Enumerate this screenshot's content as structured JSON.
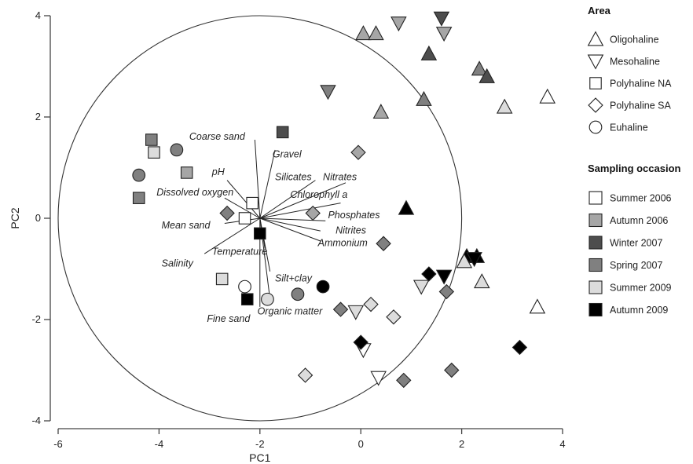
{
  "chart_data": {
    "type": "scatter",
    "title": "",
    "xlabel": "PC1",
    "ylabel": "PC2",
    "xlim": [
      -6,
      4
    ],
    "ylim": [
      -4,
      4
    ],
    "xticks": [
      "-6",
      "-4",
      "-2",
      "0",
      "2",
      "4"
    ],
    "yticks": [
      "-4",
      "-2",
      "0",
      "2",
      "4"
    ],
    "grid": false,
    "correlation_circle": {
      "center": [
        -2.0,
        0.0
      ],
      "radius": 4.0
    },
    "colors": {
      "Summer 2006": "#ffffff",
      "Autumn 2006": "#a6a6a6",
      "Winter 2007": "#4d4d4d",
      "Spring 2007": "#808080",
      "Summer 2009": "#dcdcdc",
      "Autumn 2009": "#000000"
    },
    "vectors": [
      {
        "label": "Coarse sand",
        "x": -2.1,
        "y": 1.55
      },
      {
        "label": "Gravel",
        "x": -1.7,
        "y": 1.35
      },
      {
        "label": "pH",
        "x": -2.65,
        "y": 0.75
      },
      {
        "label": "Dissolved oxygen",
        "x": -2.7,
        "y": 0.4
      },
      {
        "label": "Silicates",
        "x": -0.9,
        "y": 0.75
      },
      {
        "label": "Nitrates",
        "x": -0.3,
        "y": 0.7
      },
      {
        "label": "Chlorophyll a",
        "x": -0.4,
        "y": 0.3
      },
      {
        "label": "Phosphates",
        "x": -0.7,
        "y": -0.05
      },
      {
        "label": "Nitrites",
        "x": -0.8,
        "y": -0.25
      },
      {
        "label": "Ammonium",
        "x": -0.8,
        "y": -0.45
      },
      {
        "label": "Mean sand",
        "x": -2.7,
        "y": -0.1
      },
      {
        "label": "Temperature",
        "x": -1.9,
        "y": -0.6
      },
      {
        "label": "Salinity",
        "x": -3.1,
        "y": -0.7
      },
      {
        "label": "Silt+clay",
        "x": -1.8,
        "y": -1.05
      },
      {
        "label": "Organic matter",
        "x": -1.8,
        "y": -1.6
      },
      {
        "label": "Fine sand",
        "x": -2.0,
        "y": -1.75
      }
    ],
    "vector_label_positions": {
      "Coarse sand": [
        -3.4,
        1.55
      ],
      "Gravel": [
        -1.75,
        1.2
      ],
      "pH": [
        -2.95,
        0.85
      ],
      "Dissolved oxygen": [
        -4.05,
        0.45
      ],
      "Silicates": [
        -1.7,
        0.75
      ],
      "Nitrates": [
        -0.75,
        0.75
      ],
      "Chlorophyll a": [
        -1.4,
        0.4
      ],
      "Phosphates": [
        -0.65,
        0.0
      ],
      "Nitrites": [
        -0.5,
        -0.3
      ],
      "Ammonium": [
        -0.85,
        -0.55
      ],
      "Mean sand": [
        -3.95,
        -0.2
      ],
      "Temperature": [
        -2.95,
        -0.72
      ],
      "Salinity": [
        -3.95,
        -0.95
      ],
      "Silt+clay": [
        -1.7,
        -1.25
      ],
      "Organic matter": [
        -2.05,
        -1.9
      ],
      "Fine sand": [
        -3.05,
        -2.05
      ]
    },
    "series": [
      {
        "area": "Oligohaline",
        "shape": "triangle-up",
        "points": [
          {
            "x": 0.05,
            "y": 3.65,
            "s": "Autumn 2006"
          },
          {
            "x": 0.3,
            "y": 3.65,
            "s": "Autumn 2006"
          },
          {
            "x": 1.35,
            "y": 3.25,
            "s": "Winter 2007"
          },
          {
            "x": 2.35,
            "y": 2.95,
            "s": "Spring 2007"
          },
          {
            "x": 2.5,
            "y": 2.8,
            "s": "Winter 2007"
          },
          {
            "x": 1.25,
            "y": 2.35,
            "s": "Spring 2007"
          },
          {
            "x": 2.85,
            "y": 2.2,
            "s": "Summer 2009"
          },
          {
            "x": 3.7,
            "y": 2.4,
            "s": "Summer 2006"
          },
          {
            "x": 0.4,
            "y": 2.1,
            "s": "Autumn 2006"
          },
          {
            "x": 0.9,
            "y": 0.2,
            "s": "Autumn 2009"
          },
          {
            "x": 2.4,
            "y": -1.25,
            "s": "Summer 2009"
          },
          {
            "x": 3.5,
            "y": -1.75,
            "s": "Summer 2006"
          },
          {
            "x": 2.1,
            "y": -0.75,
            "s": "Autumn 2009"
          },
          {
            "x": 2.3,
            "y": -0.75,
            "s": "Autumn 2009"
          },
          {
            "x": 2.05,
            "y": -0.85,
            "s": "Summer 2009"
          }
        ]
      },
      {
        "area": "Mesohaline",
        "shape": "triangle-down",
        "points": [
          {
            "x": 0.75,
            "y": 3.85,
            "s": "Autumn 2006"
          },
          {
            "x": 1.6,
            "y": 3.95,
            "s": "Winter 2007"
          },
          {
            "x": 1.65,
            "y": 3.65,
            "s": "Autumn 2006"
          },
          {
            "x": -0.65,
            "y": 2.5,
            "s": "Spring 2007"
          },
          {
            "x": 1.2,
            "y": -1.35,
            "s": "Summer 2009"
          },
          {
            "x": 1.65,
            "y": -1.15,
            "s": "Autumn 2009"
          },
          {
            "x": -0.1,
            "y": -1.85,
            "s": "Summer 2009"
          },
          {
            "x": 0.05,
            "y": -2.6,
            "s": "Summer 2006"
          },
          {
            "x": 0.35,
            "y": -3.15,
            "s": "Summer 2006"
          },
          {
            "x": 2.25,
            "y": -0.8,
            "s": "Autumn 2009"
          }
        ]
      },
      {
        "area": "Polyhaline NA",
        "shape": "square",
        "points": [
          {
            "x": -4.15,
            "y": 1.55,
            "s": "Spring 2007"
          },
          {
            "x": -4.1,
            "y": 1.3,
            "s": "Summer 2009"
          },
          {
            "x": -3.45,
            "y": 0.9,
            "s": "Autumn 2006"
          },
          {
            "x": -4.4,
            "y": 0.4,
            "s": "Spring 2007"
          },
          {
            "x": -1.55,
            "y": 1.7,
            "s": "Winter 2007"
          },
          {
            "x": -2.15,
            "y": 0.3,
            "s": "Summer 2006"
          },
          {
            "x": -2.3,
            "y": 0.0,
            "s": "Summer 2006"
          },
          {
            "x": -2.0,
            "y": -0.3,
            "s": "Autumn 2009"
          },
          {
            "x": -2.75,
            "y": -1.2,
            "s": "Summer 2009"
          },
          {
            "x": -2.25,
            "y": -1.6,
            "s": "Autumn 2009"
          }
        ]
      },
      {
        "area": "Polyhaline SA",
        "shape": "diamond",
        "points": [
          {
            "x": -2.65,
            "y": 0.1,
            "s": "Spring 2007"
          },
          {
            "x": -0.05,
            "y": 1.3,
            "s": "Autumn 2006"
          },
          {
            "x": -0.95,
            "y": 0.1,
            "s": "Autumn 2006"
          },
          {
            "x": 0.45,
            "y": -0.5,
            "s": "Spring 2007"
          },
          {
            "x": -0.4,
            "y": -1.8,
            "s": "Spring 2007"
          },
          {
            "x": 0.2,
            "y": -1.7,
            "s": "Summer 2009"
          },
          {
            "x": 0.65,
            "y": -1.95,
            "s": "Summer 2009"
          },
          {
            "x": 1.35,
            "y": -1.1,
            "s": "Autumn 2009"
          },
          {
            "x": 1.7,
            "y": -1.45,
            "s": "Spring 2007"
          },
          {
            "x": 0.0,
            "y": -2.45,
            "s": "Autumn 2009"
          },
          {
            "x": -1.1,
            "y": -3.1,
            "s": "Summer 2009"
          },
          {
            "x": 0.85,
            "y": -3.2,
            "s": "Spring 2007"
          },
          {
            "x": 1.8,
            "y": -3.0,
            "s": "Spring 2007"
          },
          {
            "x": 3.15,
            "y": -2.55,
            "s": "Autumn 2009"
          }
        ]
      },
      {
        "area": "Euhaline",
        "shape": "circle",
        "points": [
          {
            "x": -3.65,
            "y": 1.35,
            "s": "Spring 2007"
          },
          {
            "x": -4.4,
            "y": 0.85,
            "s": "Spring 2007"
          },
          {
            "x": -2.3,
            "y": -1.35,
            "s": "Summer 2006"
          },
          {
            "x": -1.85,
            "y": -1.6,
            "s": "Summer 2009"
          },
          {
            "x": -1.25,
            "y": -1.5,
            "s": "Spring 2007"
          },
          {
            "x": -0.75,
            "y": -1.35,
            "s": "Autumn 2009"
          }
        ]
      }
    ],
    "legend": {
      "position": "right",
      "area_title": "Area",
      "area_items": [
        {
          "label": "Oligohaline",
          "shape": "triangle-up"
        },
        {
          "label": "Mesohaline",
          "shape": "triangle-down"
        },
        {
          "label": "Polyhaline NA",
          "shape": "square"
        },
        {
          "label": "Polyhaline SA",
          "shape": "diamond"
        },
        {
          "label": "Euhaline",
          "shape": "circle"
        }
      ],
      "occasion_title": "Sampling occasion",
      "occasion_items": [
        "Summer 2006",
        "Autumn 2006",
        "Winter 2007",
        "Spring 2007",
        "Summer 2009",
        "Autumn 2009"
      ]
    }
  }
}
